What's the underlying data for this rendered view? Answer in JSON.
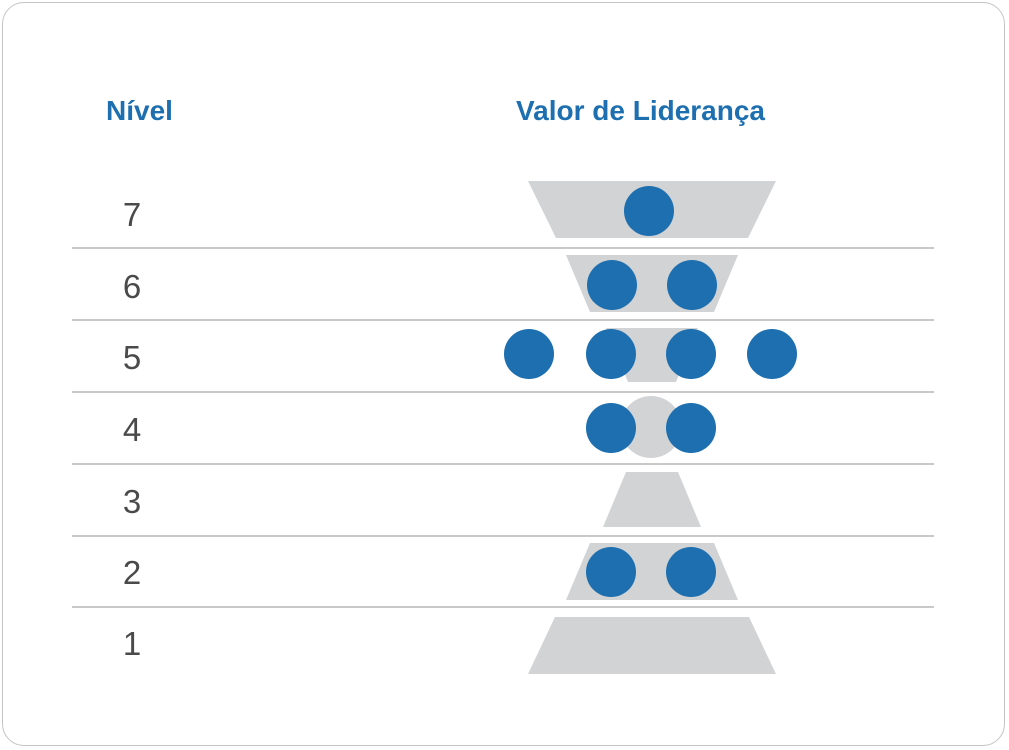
{
  "headers": {
    "level": "Nível",
    "value": "Valor de Liderança"
  },
  "colors": {
    "accent": "#1d6fb0",
    "shape": "#d2d3d5",
    "separator": "#c9c9c9",
    "label": "#4a4a4a"
  },
  "levels": [
    {
      "label": "7",
      "shape": "inverted-trapezoid",
      "dots": 1
    },
    {
      "label": "6",
      "shape": "inverted-trapezoid",
      "dots": 2
    },
    {
      "label": "5",
      "shape": "inverted-trapezoid",
      "dots": 4
    },
    {
      "label": "4",
      "shape": "circle",
      "dots": 2
    },
    {
      "label": "3",
      "shape": "trapezoid",
      "dots": 0
    },
    {
      "label": "2",
      "shape": "trapezoid",
      "dots": 2
    },
    {
      "label": "1",
      "shape": "trapezoid",
      "dots": 0
    }
  ]
}
